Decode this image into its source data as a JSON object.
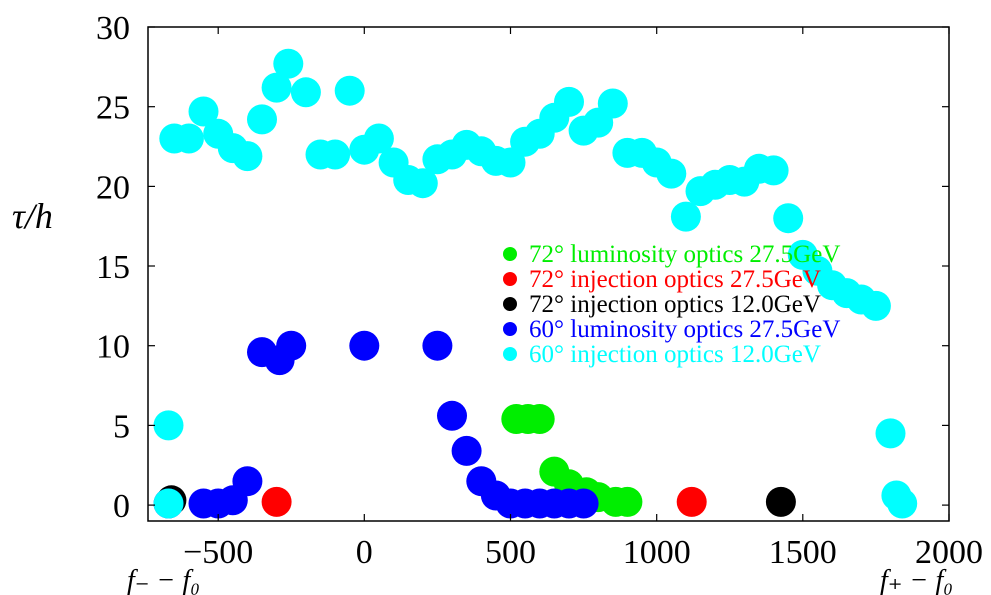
{
  "chart_data": {
    "type": "scatter",
    "ylabel": "τ/h",
    "x_endpoint_labels": {
      "left": "f₋ − f₀",
      "right": "f₊ − f₀"
    },
    "xlim": [
      -740,
      2000
    ],
    "ylim": [
      -1,
      30
    ],
    "x_ticks": [
      -500,
      0,
      500,
      1000,
      1500,
      2000
    ],
    "x_tick_labels": [
      "−500",
      "0",
      "500",
      "1000",
      "1500",
      "2000"
    ],
    "y_ticks": [
      0,
      5,
      10,
      15,
      20,
      25,
      30
    ],
    "y_tick_labels": [
      "0",
      "5",
      "10",
      "15",
      "20",
      "25",
      "30"
    ],
    "legend_placement": "center-right",
    "series": [
      {
        "name": "72° luminosity optics 27.5GeV",
        "color": "#00ee00",
        "points": [
          [
            520,
            5.4
          ],
          [
            560,
            5.4
          ],
          [
            600,
            5.4
          ],
          [
            650,
            2.1
          ],
          [
            700,
            1.3
          ],
          [
            760,
            0.8
          ],
          [
            800,
            0.5
          ],
          [
            860,
            0.2
          ],
          [
            900,
            0.2
          ]
        ]
      },
      {
        "name": "72° injection optics 27.5GeV",
        "color": "#ff0000",
        "points": [
          [
            -300,
            0.2
          ],
          [
            1120,
            0.2
          ]
        ]
      },
      {
        "name": "72° injection optics 12.0GeV",
        "color": "#000000",
        "points": [
          [
            -660,
            0.3
          ],
          [
            1425,
            0.2
          ]
        ]
      },
      {
        "name": "60° luminosity optics 27.5GeV",
        "color": "#0000ff",
        "points": [
          [
            -670,
            0.1
          ],
          [
            -550,
            0.1
          ],
          [
            -500,
            0.1
          ],
          [
            -450,
            0.3
          ],
          [
            -400,
            1.5
          ],
          [
            -350,
            9.6
          ],
          [
            -290,
            9.1
          ],
          [
            -250,
            10.0
          ],
          [
            0,
            10.0
          ],
          [
            250,
            10.0
          ],
          [
            300,
            5.6
          ],
          [
            350,
            3.4
          ],
          [
            400,
            1.5
          ],
          [
            450,
            0.6
          ],
          [
            500,
            0.1
          ],
          [
            550,
            0.1
          ],
          [
            600,
            0.1
          ],
          [
            650,
            0.1
          ],
          [
            700,
            0.1
          ],
          [
            750,
            0.1
          ]
        ]
      },
      {
        "name": "60° injection optics 12.0GeV",
        "color": "#00ffff",
        "points": [
          [
            -670,
            5.0
          ],
          [
            -670,
            0.1
          ],
          [
            -650,
            23.0
          ],
          [
            -600,
            23.0
          ],
          [
            -550,
            24.7
          ],
          [
            -500,
            23.3
          ],
          [
            -450,
            22.4
          ],
          [
            -400,
            21.9
          ],
          [
            -350,
            24.2
          ],
          [
            -300,
            26.2
          ],
          [
            -260,
            27.7
          ],
          [
            -200,
            25.9
          ],
          [
            -150,
            22.0
          ],
          [
            -100,
            22.0
          ],
          [
            -50,
            26.0
          ],
          [
            0,
            22.3
          ],
          [
            50,
            23.0
          ],
          [
            100,
            21.5
          ],
          [
            150,
            20.4
          ],
          [
            200,
            20.2
          ],
          [
            250,
            21.7
          ],
          [
            300,
            22.0
          ],
          [
            350,
            22.6
          ],
          [
            400,
            22.2
          ],
          [
            450,
            21.6
          ],
          [
            500,
            21.5
          ],
          [
            550,
            22.8
          ],
          [
            600,
            23.3
          ],
          [
            650,
            24.3
          ],
          [
            700,
            25.3
          ],
          [
            750,
            23.5
          ],
          [
            800,
            24.0
          ],
          [
            850,
            25.2
          ],
          [
            900,
            22.1
          ],
          [
            950,
            22.1
          ],
          [
            1000,
            21.5
          ],
          [
            1050,
            20.8
          ],
          [
            1100,
            18.1
          ],
          [
            1150,
            19.7
          ],
          [
            1200,
            20.1
          ],
          [
            1250,
            20.4
          ],
          [
            1300,
            20.3
          ],
          [
            1350,
            21.1
          ],
          [
            1400,
            21.0
          ],
          [
            1450,
            18.0
          ],
          [
            1500,
            15.7
          ],
          [
            1550,
            14.7
          ],
          [
            1600,
            13.8
          ],
          [
            1650,
            13.3
          ],
          [
            1700,
            12.9
          ],
          [
            1750,
            12.5
          ],
          [
            1800,
            4.5
          ],
          [
            1820,
            0.6
          ],
          [
            1840,
            0.1
          ]
        ]
      }
    ]
  }
}
